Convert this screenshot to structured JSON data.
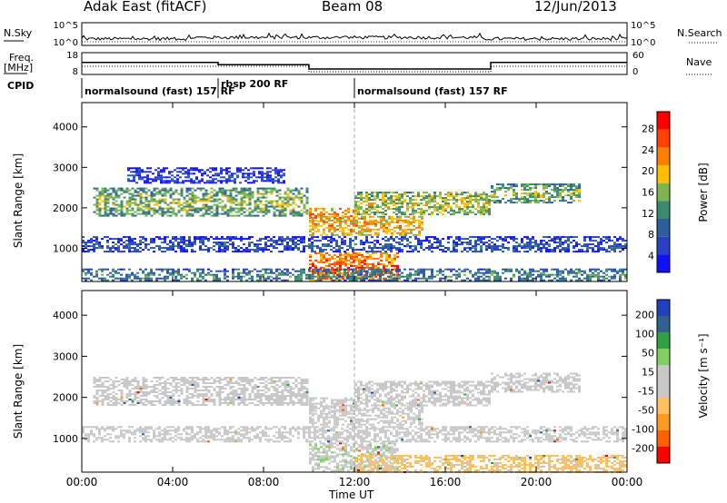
{
  "header": {
    "station": "Adak East (fitACF)",
    "beam": "Beam 08",
    "date": "12/Jun/2013"
  },
  "aux_panels": {
    "nsky_label": "N.Sky",
    "nsky_ticks": [
      "10^5",
      "10^0"
    ],
    "nsearch_label": "N.Search",
    "freq_label": "Freq.",
    "freq_unit": "[MHz]",
    "freq_ticks": [
      "18",
      "8"
    ],
    "nave_label": "Nave",
    "nave_ticks": [
      "60",
      "0"
    ],
    "cpid_label": "CPID",
    "cpid_segments": [
      {
        "label": "normalsound (fast) 157 RF",
        "start_h": 0,
        "end_h": 6
      },
      {
        "label": "rbsp 200 RF",
        "start_h": 6,
        "end_h": 10
      },
      {
        "label": "normalsound (fast) 157 RF",
        "start_h": 12,
        "end_h": 24
      }
    ],
    "freq_steps": [
      {
        "start_h": 0,
        "end_h": 6,
        "mhz": 13.5
      },
      {
        "start_h": 6,
        "end_h": 10,
        "mhz": 12.5
      },
      {
        "start_h": 10,
        "end_h": 18,
        "mhz": 10.5
      },
      {
        "start_h": 18,
        "end_h": 24,
        "mhz": 13.5
      }
    ]
  },
  "chart_data": [
    {
      "type": "heatmap",
      "name": "power",
      "ylabel": "Slant Range [km]",
      "xlabel": "Time UT",
      "xlim": [
        0,
        24
      ],
      "ylim": [
        180,
        4600
      ],
      "x_ticks": [
        "00:00",
        "04:00",
        "08:00",
        "12:00",
        "16:00",
        "20:00",
        "00:00"
      ],
      "y_ticks": [
        1000,
        2000,
        3000,
        4000
      ],
      "colorbar": {
        "label": "Power [dB]",
        "ticks": [
          "28",
          "24",
          "20",
          "16",
          "12",
          "8",
          "4"
        ],
        "range": [
          0,
          32
        ],
        "colors": [
          "#1010ff",
          "#2840c8",
          "#2c5e9e",
          "#3a8a6e",
          "#7cb450",
          "#ffbf00",
          "#ff8000",
          "#ff4000",
          "#ff0000"
        ]
      },
      "regions": [
        {
          "t0": 0.5,
          "t1": 10,
          "r0": 1800,
          "r1": 2500,
          "level": 16
        },
        {
          "t0": 10,
          "t1": 12,
          "r0": 1650,
          "r1": 2000,
          "level": 24
        },
        {
          "t0": 12,
          "t1": 18,
          "r0": 1800,
          "r1": 2400,
          "level": 18
        },
        {
          "t0": 18,
          "t1": 22,
          "r0": 2100,
          "r1": 2600,
          "level": 16
        },
        {
          "t0": 10,
          "t1": 15,
          "r0": 1300,
          "r1": 1800,
          "level": 22
        },
        {
          "t0": 10,
          "t1": 14,
          "r0": 200,
          "r1": 900,
          "level": 26
        },
        {
          "t0": 0,
          "t1": 24,
          "r0": 900,
          "r1": 1300,
          "level": 8
        },
        {
          "t0": 0,
          "t1": 24,
          "r0": 180,
          "r1": 500,
          "level": 12
        },
        {
          "t0": 2,
          "t1": 9,
          "r0": 2600,
          "r1": 3000,
          "level": 6
        }
      ]
    },
    {
      "type": "heatmap",
      "name": "velocity",
      "ylabel": "Slant Range [km]",
      "xlabel": "Time UT",
      "xlim": [
        0,
        24
      ],
      "ylim": [
        180,
        4600
      ],
      "x_ticks": [
        "00:00",
        "04:00",
        "08:00",
        "12:00",
        "16:00",
        "20:00",
        "00:00"
      ],
      "y_ticks": [
        1000,
        2000,
        3000,
        4000
      ],
      "colorbar": {
        "label": "Velocity [m s⁻¹]",
        "ticks": [
          "200",
          "100",
          "50",
          "15",
          "-15",
          "-50",
          "-100",
          "-200"
        ],
        "range": [
          -250,
          250
        ],
        "colors": [
          "#ff0000",
          "#ff6000",
          "#ff9a20",
          "#ffc060",
          "#c8c8c8",
          "#c8c8c8",
          "#80d060",
          "#30a040",
          "#306090",
          "#2040c0"
        ]
      },
      "regions": [
        {
          "t0": 0.5,
          "t1": 10,
          "r0": 1800,
          "r1": 2500,
          "value": 0
        },
        {
          "t0": 10,
          "t1": 12,
          "r0": 1650,
          "r1": 2000,
          "value": 30
        },
        {
          "t0": 12,
          "t1": 18,
          "r0": 1800,
          "r1": 2400,
          "value": 0
        },
        {
          "t0": 18,
          "t1": 22,
          "r0": 2100,
          "r1": 2600,
          "value": 0
        },
        {
          "t0": 10,
          "t1": 15,
          "r0": 1300,
          "r1": 1800,
          "value": 0
        },
        {
          "t0": 10,
          "t1": 14,
          "r0": 200,
          "r1": 900,
          "value": 40
        },
        {
          "t0": 0,
          "t1": 24,
          "r0": 900,
          "r1": 1300,
          "value": 0
        },
        {
          "t0": 12,
          "t1": 24,
          "r0": 180,
          "r1": 600,
          "value": -60
        }
      ]
    }
  ]
}
